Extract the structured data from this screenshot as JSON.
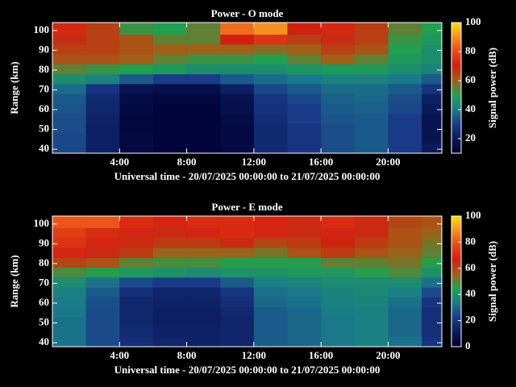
{
  "chart_data": [
    {
      "type": "heatmap",
      "title": "Power - O mode",
      "ylabel": "Range (km)",
      "xlabel": "Universal time - 20/07/2025 00:00:00 to 21/07/2025 00:00:00",
      "colorbar_label": "Signal power (dB)",
      "xlim": [
        0,
        23.2
      ],
      "xticks": [
        {
          "value": 4,
          "label": "4:00"
        },
        {
          "value": 8,
          "label": "8:00"
        },
        {
          "value": 12,
          "label": "12:00"
        },
        {
          "value": 16,
          "label": "16:00"
        },
        {
          "value": 20,
          "label": "20:00"
        }
      ],
      "ylim": [
        38,
        104
      ],
      "yticks": [
        40,
        50,
        60,
        70,
        80,
        90,
        100
      ],
      "zlim": [
        10,
        100
      ],
      "colorbar_ticks": [
        20,
        40,
        60,
        80,
        100
      ],
      "colormap": [
        "#000033",
        "#0a1a5a",
        "#1a3a8a",
        "#1a7a8a",
        "#20a050",
        "#a06018",
        "#d02010",
        "#e84818",
        "#f49020",
        "#ffe000"
      ],
      "xbins": [
        0,
        2,
        4,
        6,
        8,
        10,
        12,
        14,
        16,
        18,
        20,
        22,
        23.2
      ],
      "ybins": [
        38,
        43,
        48,
        53,
        58,
        63,
        68,
        73,
        78,
        83,
        88,
        93,
        98,
        104
      ],
      "z": [
        [
          32,
          22,
          14,
          12,
          12,
          14,
          25,
          28,
          33,
          35,
          30,
          20
        ],
        [
          32,
          22,
          14,
          12,
          12,
          14,
          25,
          28,
          33,
          35,
          30,
          18
        ],
        [
          33,
          22,
          13,
          12,
          12,
          14,
          25,
          28,
          33,
          35,
          30,
          18
        ],
        [
          33,
          23,
          13,
          12,
          12,
          15,
          26,
          30,
          34,
          35,
          30,
          18
        ],
        [
          34,
          24,
          14,
          12,
          12,
          16,
          27,
          30,
          35,
          36,
          32,
          20
        ],
        [
          35,
          25,
          15,
          13,
          13,
          17,
          28,
          32,
          36,
          37,
          33,
          22
        ],
        [
          38,
          28,
          18,
          16,
          16,
          22,
          32,
          35,
          38,
          38,
          35,
          28
        ],
        [
          45,
          42,
          35,
          30,
          30,
          35,
          38,
          40,
          42,
          42,
          40,
          35
        ],
        [
          55,
          52,
          50,
          48,
          45,
          45,
          45,
          47,
          48,
          48,
          45,
          42
        ],
        [
          62,
          62,
          60,
          55,
          52,
          52,
          50,
          55,
          60,
          55,
          48,
          45
        ],
        [
          65,
          65,
          62,
          60,
          60,
          60,
          58,
          60,
          65,
          62,
          50,
          45
        ],
        [
          68,
          65,
          62,
          55,
          55,
          70,
          75,
          65,
          68,
          65,
          52,
          48
        ],
        [
          72,
          65,
          52,
          50,
          55,
          85,
          90,
          70,
          72,
          65,
          55,
          50
        ]
      ]
    },
    {
      "type": "heatmap",
      "title": "Power - E mode",
      "ylabel": "Range (km)",
      "xlabel": "Universal time - 20/07/2025 00:00:00 to 21/07/2025 00:00:00",
      "colorbar_label": "Signal power (dB)",
      "xlim": [
        0,
        23.2
      ],
      "xticks": [
        {
          "value": 4,
          "label": "4:00"
        },
        {
          "value": 8,
          "label": "8:00"
        },
        {
          "value": 12,
          "label": "12:00"
        },
        {
          "value": 16,
          "label": "16:00"
        },
        {
          "value": 20,
          "label": "20:00"
        }
      ],
      "ylim": [
        38,
        104
      ],
      "yticks": [
        40,
        50,
        60,
        70,
        80,
        90,
        100
      ],
      "zlim": [
        0,
        100
      ],
      "colorbar_ticks": [
        0,
        20,
        40,
        60,
        80,
        100
      ],
      "colormap": [
        "#000033",
        "#0a1a5a",
        "#1a3a8a",
        "#1a7a8a",
        "#20a050",
        "#a06018",
        "#d02010",
        "#e84818",
        "#f49020",
        "#ffe000"
      ],
      "xbins": [
        0,
        2,
        4,
        6,
        8,
        10,
        12,
        14,
        16,
        18,
        20,
        22,
        23.2
      ],
      "ybins": [
        38,
        43,
        48,
        53,
        58,
        63,
        68,
        73,
        78,
        83,
        88,
        93,
        98,
        104
      ],
      "z": [
        [
          32,
          25,
          18,
          15,
          14,
          15,
          28,
          30,
          33,
          35,
          32,
          20
        ],
        [
          32,
          25,
          17,
          14,
          14,
          15,
          28,
          30,
          33,
          35,
          30,
          18
        ],
        [
          32,
          25,
          16,
          13,
          13,
          15,
          28,
          30,
          33,
          35,
          30,
          18
        ],
        [
          33,
          25,
          16,
          13,
          13,
          16,
          28,
          30,
          34,
          35,
          30,
          18
        ],
        [
          34,
          26,
          16,
          14,
          14,
          18,
          30,
          32,
          35,
          36,
          32,
          20
        ],
        [
          35,
          28,
          18,
          15,
          15,
          20,
          32,
          33,
          36,
          37,
          35,
          25
        ],
        [
          38,
          32,
          25,
          22,
          22,
          28,
          35,
          36,
          38,
          38,
          38,
          32
        ],
        [
          48,
          45,
          42,
          40,
          38,
          40,
          40,
          42,
          42,
          45,
          48,
          40
        ],
        [
          60,
          58,
          50,
          48,
          48,
          45,
          45,
          45,
          50,
          50,
          52,
          45
        ],
        [
          68,
          65,
          62,
          55,
          55,
          55,
          52,
          58,
          62,
          58,
          55,
          50
        ],
        [
          72,
          68,
          65,
          62,
          62,
          65,
          60,
          62,
          66,
          62,
          58,
          52
        ],
        [
          75,
          70,
          68,
          65,
          68,
          70,
          68,
          65,
          68,
          65,
          58,
          55
        ],
        [
          80,
          80,
          70,
          68,
          70,
          70,
          68,
          65,
          70,
          65,
          60,
          58
        ]
      ]
    }
  ]
}
